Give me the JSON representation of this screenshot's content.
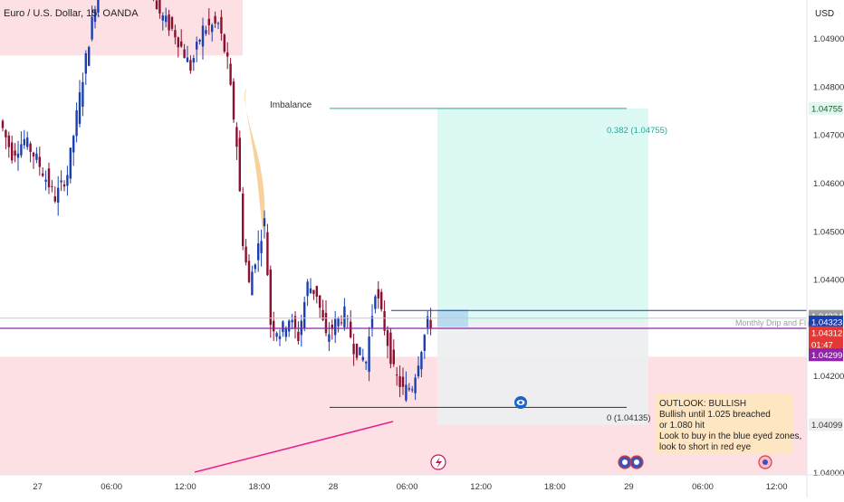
{
  "header": {
    "symbol_title": "Euro / U.S. Dollar, 15, OANDA"
  },
  "price_axis": {
    "currency": "USD",
    "ticks": [
      "1.04900",
      "1.04800",
      "1.04700",
      "1.04600",
      "1.04500",
      "1.04400",
      "1.04200",
      "1.04000"
    ],
    "badges": [
      {
        "label": "1.04755",
        "price": 1.04755,
        "bg": "#e0f7f0",
        "fg": "#1b5e20"
      },
      {
        "label": "1.04324",
        "price": 1.04324,
        "bg": "#9e9e9e",
        "fg": "#ffffff"
      },
      {
        "label": "1.04323",
        "price": 1.04312,
        "bg": "#1a3fb3",
        "fg": "#ffffff"
      },
      {
        "label": "1.04312",
        "price": 1.0429,
        "bg": "#e53935",
        "fg": "#ffffff"
      },
      {
        "label": "01:47",
        "price": 1.04265,
        "bg": "#e53935",
        "fg": "#ffffff"
      },
      {
        "label": "1.04299",
        "price": 1.04244,
        "bg": "#8e24aa",
        "fg": "#ffffff"
      },
      {
        "label": "1.04099",
        "price": 1.04099,
        "bg": "#eeeeee",
        "fg": "#333333"
      }
    ]
  },
  "time_axis": {
    "ticks": [
      {
        "label": "27",
        "bar": 9
      },
      {
        "label": "06:00",
        "bar": 33
      },
      {
        "label": "12:00",
        "bar": 57
      },
      {
        "label": "18:00",
        "bar": 81
      },
      {
        "label": "28",
        "bar": 105
      },
      {
        "label": "06:00",
        "bar": 129
      },
      {
        "label": "12:00",
        "bar": 153
      },
      {
        "label": "18:00",
        "bar": 177
      },
      {
        "label": "29",
        "bar": 201
      },
      {
        "label": "06:00",
        "bar": 225
      },
      {
        "label": "12:00",
        "bar": 249
      }
    ]
  },
  "annotations": {
    "imbalance": "Imbalance",
    "fib_top": "0.382 (1.04755)",
    "fib_bottom": "0 (1.04135)",
    "level_label": "Monthly Drip and Flip",
    "outlook": [
      "OUTLOOK: BULLISH",
      "Bullish until 1.025 breached",
      "or 1.080 hit",
      "Look to buy in the blue eyed zones,",
      "look to short in red eye"
    ]
  },
  "colors": {
    "bull": "#1a3fb3",
    "bear": "#8b0f2e",
    "red_zone": "#fde0e4",
    "target_zone": "#dcfaf3",
    "stop_zone": "#eceef1",
    "purple_line": "#8e24aa",
    "blue_line": "#1a3fb3",
    "teal_line": "#26a69a",
    "note_bg": "#ffe6c2"
  },
  "chart_data": {
    "type": "candlestick",
    "symbol": "Euro / U.S. Dollar, 15, OANDA",
    "timeframe": "15",
    "ylim": [
      1.03995,
      1.0498
    ],
    "price_labels": [
      1.049,
      1.048,
      1.047,
      1.046,
      1.045,
      1.044,
      1.042,
      1.04
    ],
    "anchors": [
      {
        "bar": 0,
        "price": 1.0473
      },
      {
        "bar": 4,
        "price": 1.0466
      },
      {
        "bar": 8,
        "price": 1.0469
      },
      {
        "bar": 12,
        "price": 1.0465
      },
      {
        "bar": 18,
        "price": 1.0457
      },
      {
        "bar": 22,
        "price": 1.0462
      },
      {
        "bar": 27,
        "price": 1.0482
      },
      {
        "bar": 33,
        "price": 1.0505
      },
      {
        "bar": 37,
        "price": 1.0508
      },
      {
        "bar": 42,
        "price": 1.0514
      },
      {
        "bar": 47,
        "price": 1.0509
      },
      {
        "bar": 51,
        "price": 1.0496
      },
      {
        "bar": 57,
        "price": 1.0491
      },
      {
        "bar": 62,
        "price": 1.0484
      },
      {
        "bar": 66,
        "price": 1.0492
      },
      {
        "bar": 71,
        "price": 1.0493
      },
      {
        "bar": 74,
        "price": 1.0485
      },
      {
        "bar": 77,
        "price": 1.0468
      },
      {
        "bar": 79,
        "price": 1.0448
      },
      {
        "bar": 81,
        "price": 1.0439
      },
      {
        "bar": 84,
        "price": 1.0447
      },
      {
        "bar": 86,
        "price": 1.0452
      },
      {
        "bar": 88,
        "price": 1.0431
      },
      {
        "bar": 91,
        "price": 1.0429
      },
      {
        "bar": 94,
        "price": 1.0432
      },
      {
        "bar": 97,
        "price": 1.0428
      },
      {
        "bar": 100,
        "price": 1.0439
      },
      {
        "bar": 103,
        "price": 1.0437
      },
      {
        "bar": 106,
        "price": 1.0428
      },
      {
        "bar": 109,
        "price": 1.0431
      },
      {
        "bar": 112,
        "price": 1.0433
      },
      {
        "bar": 115,
        "price": 1.0426
      },
      {
        "bar": 119,
        "price": 1.0423
      },
      {
        "bar": 122,
        "price": 1.0438
      },
      {
        "bar": 125,
        "price": 1.043
      },
      {
        "bar": 128,
        "price": 1.0421
      },
      {
        "bar": 131,
        "price": 1.0417
      },
      {
        "bar": 134,
        "price": 1.0418
      },
      {
        "bar": 137,
        "price": 1.0426
      },
      {
        "bar": 139,
        "price": 1.0431
      }
    ],
    "levels": {
      "fib_0382": 1.04755,
      "fib_0": 1.04135,
      "monthly_drip_and_flip": 1.0432,
      "purple_level": 1.04299,
      "red_zone_top": 1.0424,
      "red_zone_bottom": 1.03995,
      "upper_red_zone_top": 1.0498,
      "upper_red_zone_bottom": 1.04865,
      "target_zone_top": 1.04755,
      "target_zone_bottom": 1.04313,
      "stop_zone_top": 1.04313,
      "stop_zone_bottom": 1.04099
    }
  }
}
